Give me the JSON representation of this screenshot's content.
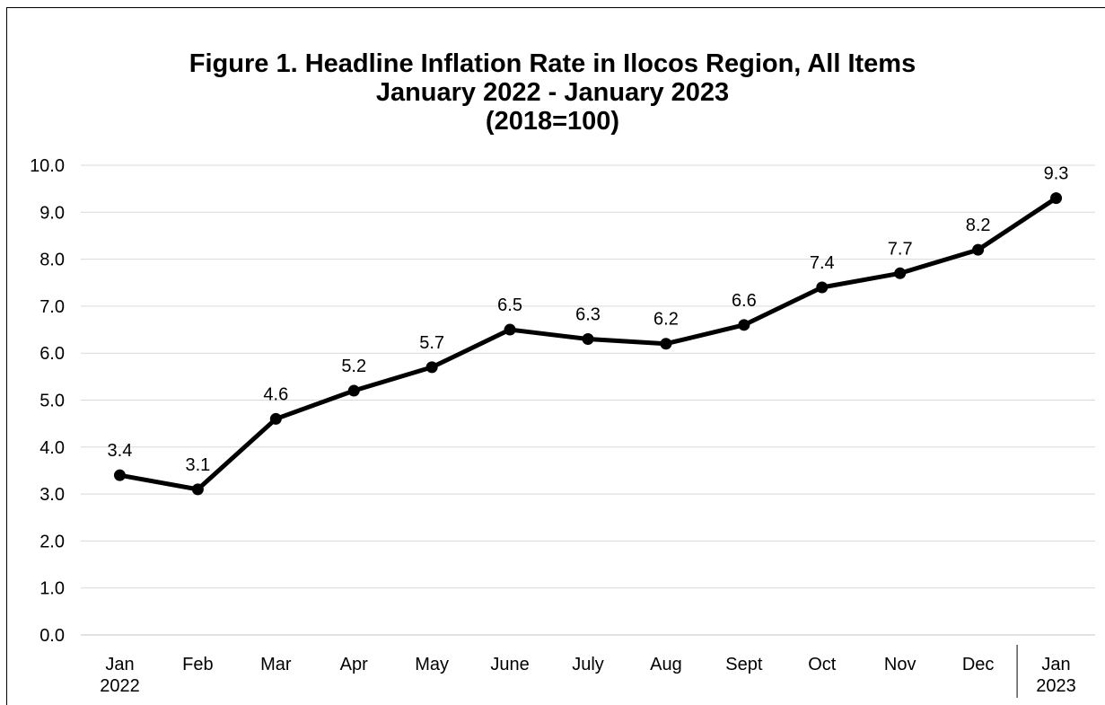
{
  "chart_data": {
    "type": "line",
    "title_lines": [
      "Figure 1. Headline Inflation Rate in Ilocos Region, All Items",
      "January 2022 - January 2023",
      "(2018=100)"
    ],
    "categories": [
      [
        "Jan",
        "2022"
      ],
      [
        "Feb"
      ],
      [
        "Mar"
      ],
      [
        "Apr"
      ],
      [
        "May"
      ],
      [
        "June"
      ],
      [
        "July"
      ],
      [
        "Aug"
      ],
      [
        "Sept"
      ],
      [
        "Oct"
      ],
      [
        "Nov"
      ],
      [
        "Dec"
      ],
      [
        "Jan",
        "2023"
      ]
    ],
    "series": [
      {
        "values": [
          3.4,
          3.1,
          4.6,
          5.2,
          5.7,
          6.5,
          6.3,
          6.2,
          6.6,
          7.4,
          7.7,
          8.2,
          9.3
        ],
        "color": "#000000"
      }
    ],
    "data_labels": [
      "3.4",
      "3.1",
      "4.6",
      "5.2",
      "5.7",
      "6.5",
      "6.3",
      "6.2",
      "6.6",
      "7.4",
      "7.7",
      "8.2",
      "9.3"
    ],
    "y_ticks": [
      "0.0",
      "1.0",
      "2.0",
      "3.0",
      "4.0",
      "5.0",
      "6.0",
      "7.0",
      "8.0",
      "9.0",
      "10.0"
    ],
    "ylim": [
      0,
      10
    ],
    "grid": true,
    "gridline_color": "#d9d9d9",
    "xlabel": "",
    "ylabel": "",
    "legend": "none",
    "year_separator_before_last": true
  }
}
